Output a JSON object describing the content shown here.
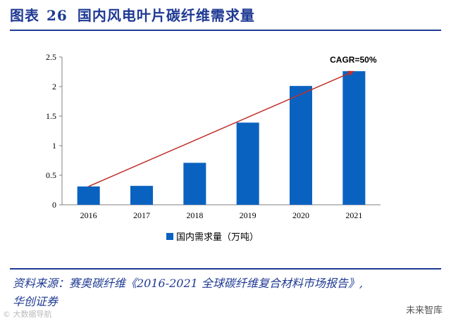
{
  "header": {
    "figure_label": "图表",
    "figure_number": "26",
    "title": "国内风电叶片碳纤维需求量"
  },
  "chart_data": {
    "type": "bar",
    "categories": [
      "2016",
      "2017",
      "2018",
      "2019",
      "2020",
      "2021"
    ],
    "series": [
      {
        "name": "国内需求量（万吨）",
        "values": [
          0.31,
          0.32,
          0.71,
          1.39,
          2.01,
          2.26
        ]
      }
    ],
    "ylim": [
      0,
      2.5
    ],
    "yticks": [
      "0",
      "0.5",
      "1",
      "1.5",
      "2",
      "2.5"
    ],
    "xlabel": "",
    "ylabel": "",
    "trendline": {
      "from_index": 0,
      "to_index": 5,
      "label": "CAGR=50%"
    },
    "legend_position": "bottom-center",
    "grid": false,
    "colors": {
      "bar": "#0a62c0",
      "trend": "#c0302a",
      "axis": "#808080"
    }
  },
  "footer": {
    "source_line1": "资料来源：赛奥碳纤维《2016-2021 全球碳纤维复合材料市场报告》,",
    "source_line2": "华创证券",
    "watermark_left": "© 大数据导航",
    "watermark_right": "未来智库"
  }
}
